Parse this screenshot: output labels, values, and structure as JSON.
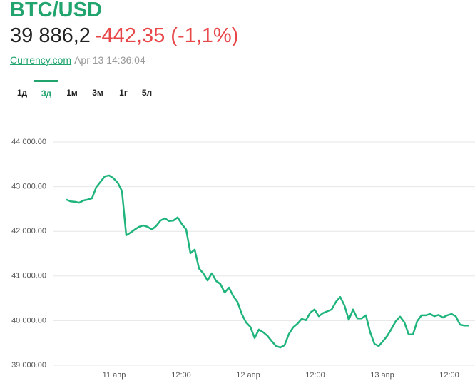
{
  "header": {
    "symbol": "BTC/USD",
    "price": "39 886,2",
    "change": "-442,35 (-1,1%)",
    "source": "Currency.com",
    "timestamp": "Apr 13 14:36:04"
  },
  "tabs": {
    "items": [
      "1д",
      "3д",
      "1м",
      "3м",
      "1г",
      "5л"
    ],
    "active": 1
  },
  "chart_data": {
    "type": "line",
    "color": "#1fb47c",
    "grid": true,
    "x_labels": [
      "11 апр",
      "12:00",
      "12 апр",
      "12:00",
      "13 апр",
      "12:00"
    ],
    "ylim": [
      39000,
      44000
    ],
    "yticks": [
      {
        "value": 39000,
        "label": "39 000.00"
      },
      {
        "value": 40000,
        "label": "40 000.00"
      },
      {
        "value": 41000,
        "label": "41 000.00"
      },
      {
        "value": 42000,
        "label": "42 000.00"
      },
      {
        "value": 43000,
        "label": "43 000.00"
      },
      {
        "value": 44000,
        "label": "44 000.00"
      }
    ],
    "values": [
      42710,
      42670,
      42660,
      42640,
      42690,
      42710,
      42740,
      42990,
      43110,
      43230,
      43250,
      43190,
      43090,
      42900,
      41910,
      41970,
      42040,
      42100,
      42130,
      42100,
      42040,
      42120,
      42240,
      42290,
      42230,
      42240,
      42310,
      42160,
      42040,
      41510,
      41590,
      41170,
      41060,
      40900,
      41060,
      40890,
      40820,
      40630,
      40740,
      40550,
      40420,
      40150,
      39960,
      39860,
      39610,
      39800,
      39740,
      39660,
      39540,
      39430,
      39400,
      39450,
      39700,
      39850,
      39930,
      40040,
      40010,
      40180,
      40250,
      40100,
      40170,
      40210,
      40250,
      40420,
      40530,
      40340,
      40020,
      40250,
      40050,
      40050,
      40120,
      39740,
      39480,
      39430,
      39540,
      39660,
      39820,
      39990,
      40090,
      39960,
      39690,
      39690,
      39990,
      40120,
      40120,
      40150,
      40100,
      40130,
      40070,
      40120,
      40150,
      40100,
      39910,
      39890,
      39890
    ]
  }
}
